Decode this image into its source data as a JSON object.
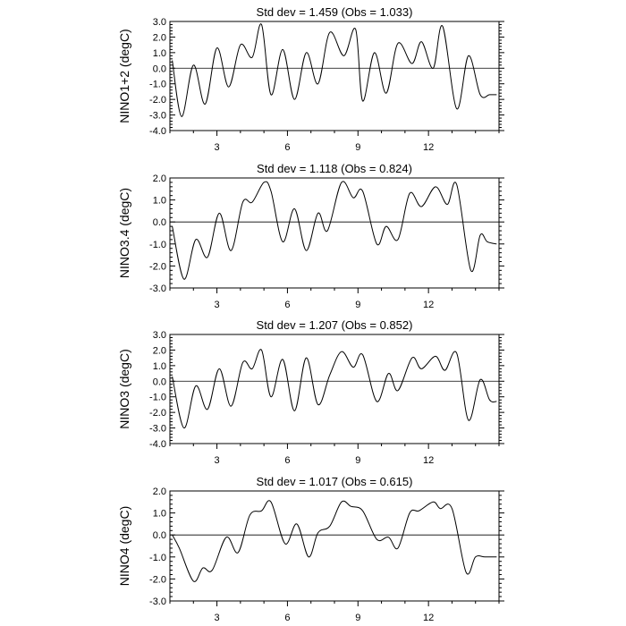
{
  "chart_data": [
    {
      "type": "line",
      "title": "Std dev = 1.459 (Obs = 1.033)",
      "ylabel": "NINO1+2 (degC)",
      "xlim": [
        1,
        15
      ],
      "ylim": [
        -4.0,
        3.0
      ],
      "xticks": [
        3,
        6,
        9,
        12
      ],
      "xtick_labels": [
        "3",
        "6",
        "9",
        "12"
      ],
      "yticks": [
        -4.0,
        -3.0,
        -2.0,
        -1.0,
        0.0,
        1.0,
        2.0,
        3.0
      ],
      "ytick_labels": [
        "-4.0",
        "-3.0",
        "-2.0",
        "-1.0",
        "0.0",
        "1.0",
        "2.0",
        "3.0"
      ],
      "reference_line": 0,
      "grid": false,
      "series": [
        {
          "x": [
            1.1,
            1.5,
            2.0,
            2.5,
            3.0,
            3.5,
            4.0,
            4.5,
            4.9,
            5.3,
            5.8,
            6.3,
            6.8,
            7.3,
            7.8,
            8.4,
            8.9,
            9.2,
            9.7,
            10.2,
            10.7,
            11.3,
            11.7,
            12.2,
            12.6,
            13.2,
            13.7,
            14.2,
            14.6,
            14.9
          ],
          "y": [
            0.5,
            -3.1,
            0.2,
            -2.3,
            1.3,
            -1.2,
            1.5,
            0.7,
            2.8,
            -1.7,
            1.2,
            -2.0,
            1.0,
            -1.0,
            2.3,
            0.8,
            2.5,
            -2.1,
            1.0,
            -1.6,
            1.6,
            0.3,
            1.7,
            0.0,
            2.7,
            -2.6,
            0.8,
            -1.7,
            -1.7,
            -1.7
          ]
        }
      ]
    },
    {
      "type": "line",
      "title": "Std dev = 1.118 (Obs = 0.824)",
      "ylabel": "NINO3.4 (degC)",
      "xlim": [
        1,
        15
      ],
      "ylim": [
        -3.0,
        2.0
      ],
      "xticks": [
        3,
        6,
        9,
        12
      ],
      "xtick_labels": [
        "3",
        "6",
        "9",
        "12"
      ],
      "yticks": [
        -3.0,
        -2.0,
        -1.0,
        0.0,
        1.0,
        2.0
      ],
      "ytick_labels": [
        "-3.0",
        "-2.0",
        "-1.0",
        "0.0",
        "1.0",
        "2.0"
      ],
      "reference_line": 0,
      "grid": false,
      "series": [
        {
          "x": [
            1.1,
            1.6,
            2.1,
            2.6,
            3.1,
            3.6,
            4.1,
            4.5,
            5.0,
            5.3,
            5.8,
            6.3,
            6.8,
            7.3,
            7.7,
            8.3,
            8.8,
            9.2,
            9.8,
            10.2,
            10.7,
            11.2,
            11.7,
            12.3,
            12.8,
            13.2,
            13.8,
            14.2,
            14.5,
            14.9
          ],
          "y": [
            -0.2,
            -2.6,
            -0.8,
            -1.6,
            0.4,
            -1.3,
            0.9,
            0.9,
            1.8,
            1.4,
            -0.9,
            0.6,
            -1.3,
            0.4,
            -0.4,
            1.8,
            1.1,
            1.4,
            -1.0,
            -0.2,
            -0.8,
            1.3,
            0.7,
            1.6,
            0.8,
            1.7,
            -2.2,
            -0.6,
            -0.9,
            -1.0
          ]
        }
      ]
    },
    {
      "type": "line",
      "title": "Std dev = 1.207 (Obs = 0.852)",
      "ylabel": "NINO3 (degC)",
      "xlim": [
        1,
        15
      ],
      "ylim": [
        -4.0,
        3.0
      ],
      "xticks": [
        3,
        6,
        9,
        12
      ],
      "xtick_labels": [
        "3",
        "6",
        "9",
        "12"
      ],
      "yticks": [
        -4.0,
        -3.0,
        -2.0,
        -1.0,
        0.0,
        1.0,
        2.0,
        3.0
      ],
      "ytick_labels": [
        "-4.0",
        "-3.0",
        "-2.0",
        "-1.0",
        "0.0",
        "1.0",
        "2.0",
        "3.0"
      ],
      "reference_line": 0,
      "grid": false,
      "series": [
        {
          "x": [
            1.1,
            1.6,
            2.1,
            2.6,
            3.1,
            3.6,
            4.1,
            4.5,
            4.9,
            5.3,
            5.8,
            6.3,
            6.8,
            7.3,
            7.8,
            8.3,
            8.8,
            9.2,
            9.8,
            10.3,
            10.7,
            11.3,
            11.7,
            12.3,
            12.7,
            13.2,
            13.7,
            14.2,
            14.6,
            14.9
          ],
          "y": [
            0.3,
            -3.0,
            -0.3,
            -1.8,
            0.8,
            -1.6,
            1.2,
            0.8,
            2.0,
            -1.0,
            1.4,
            -1.9,
            1.5,
            -1.5,
            0.4,
            1.9,
            0.9,
            1.7,
            -1.3,
            0.5,
            -0.6,
            1.5,
            0.8,
            1.6,
            0.7,
            1.8,
            -2.5,
            0.1,
            -1.2,
            -1.3
          ]
        }
      ]
    },
    {
      "type": "line",
      "title": "Std dev = 1.017 (Obs = 0.615)",
      "ylabel": "NINO4 (degC)",
      "xlim": [
        1,
        15
      ],
      "ylim": [
        -3.0,
        2.0
      ],
      "xticks": [
        3,
        6,
        9,
        12
      ],
      "xtick_labels": [
        "3",
        "6",
        "9",
        "12"
      ],
      "yticks": [
        -3.0,
        -2.0,
        -1.0,
        0.0,
        1.0,
        2.0
      ],
      "ytick_labels": [
        "-3.0",
        "-2.0",
        "-1.0",
        "0.0",
        "1.0",
        "2.0"
      ],
      "reference_line": 0,
      "grid": false,
      "series": [
        {
          "x": [
            1.1,
            1.4,
            2.0,
            2.4,
            2.8,
            3.4,
            3.9,
            4.4,
            4.9,
            5.3,
            5.9,
            6.4,
            6.9,
            7.3,
            7.8,
            8.3,
            8.7,
            9.2,
            9.8,
            10.3,
            10.7,
            11.2,
            11.6,
            12.2,
            12.5,
            13.0,
            13.6,
            14.0,
            14.4,
            14.9
          ],
          "y": [
            0.0,
            -0.6,
            -2.1,
            -1.5,
            -1.6,
            -0.1,
            -0.8,
            0.9,
            1.1,
            1.5,
            -0.4,
            0.5,
            -1.0,
            0.1,
            0.4,
            1.5,
            1.3,
            1.1,
            -0.2,
            -0.1,
            -0.6,
            1.0,
            1.1,
            1.5,
            1.2,
            1.2,
            -1.7,
            -1.0,
            -1.0,
            -1.0
          ]
        }
      ]
    }
  ]
}
